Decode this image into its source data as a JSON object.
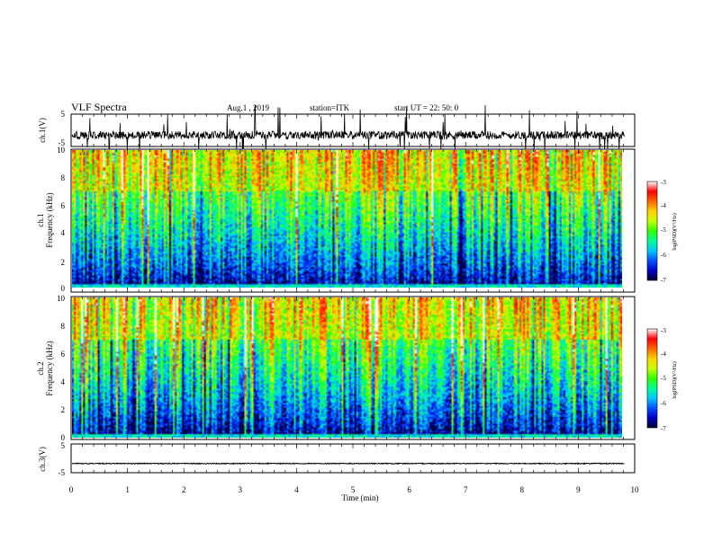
{
  "header": {
    "title": "VLF Spectra",
    "date": "Aug.1  , 2019",
    "station": "station=ITK",
    "start": "start UT =  22: 50: 0"
  },
  "colors": {
    "spectrogram_scale": [
      "#00002e",
      "#0000c8",
      "#0050ff",
      "#00c8ff",
      "#00ff96",
      "#32ff00",
      "#c8ff00",
      "#ffd200",
      "#ff6400",
      "#ff0000",
      "#ffffff"
    ],
    "trace": "#000000"
  },
  "chart_data": [
    {
      "type": "line",
      "name": "ch1-waveform-panel",
      "ylabel": "ch.1(V)",
      "ylim": [
        -5,
        5
      ],
      "yticks": [
        "5",
        "-5"
      ],
      "xlim": [
        0,
        10
      ],
      "baseline": -1.5,
      "noise_amplitude": 2.5,
      "spike_max": 9.5
    },
    {
      "type": "heatmap",
      "name": "ch1-spectrogram",
      "ylabel_line1": "ch.1",
      "ylabel_line2": "Frequency (kHz)",
      "ylim": [
        0,
        10
      ],
      "yticks": [
        "0",
        "2",
        "4",
        "6",
        "8",
        "10"
      ],
      "xlim": [
        0,
        9.83
      ],
      "colorbar": {
        "label": "log(PSD)(V²/Hz)",
        "range": [
          -7,
          -3
        ],
        "ticks": [
          "-3",
          "-4",
          "-5",
          "-6",
          "-7"
        ]
      }
    },
    {
      "type": "heatmap",
      "name": "ch2-spectrogram",
      "ylabel_line1": "ch.2",
      "ylabel_line2": "Frequency (kHz)",
      "ylim": [
        0,
        10
      ],
      "yticks": [
        "0",
        "2",
        "4",
        "6",
        "8",
        "10"
      ],
      "xlim": [
        0,
        9.83
      ],
      "colorbar": {
        "label": "log(PSD)(V²/Hz)",
        "range": [
          -7,
          -3
        ],
        "ticks": [
          "-3",
          "-4",
          "-5",
          "-6",
          "-7"
        ]
      }
    },
    {
      "type": "line",
      "name": "ch3-waveform-panel",
      "ylabel": "ch.3(V)",
      "ylim": [
        -5,
        5
      ],
      "yticks": [
        "5",
        "-5"
      ],
      "xlim": [
        0,
        10
      ],
      "baseline": -1.8,
      "noise_amplitude": 0.3,
      "spike_max": 0
    }
  ],
  "xaxis": {
    "label": "Time (min)",
    "range": [
      0,
      10
    ],
    "ticks": [
      "0",
      "1",
      "2",
      "3",
      "4",
      "5",
      "6",
      "7",
      "8",
      "9",
      "10"
    ]
  }
}
